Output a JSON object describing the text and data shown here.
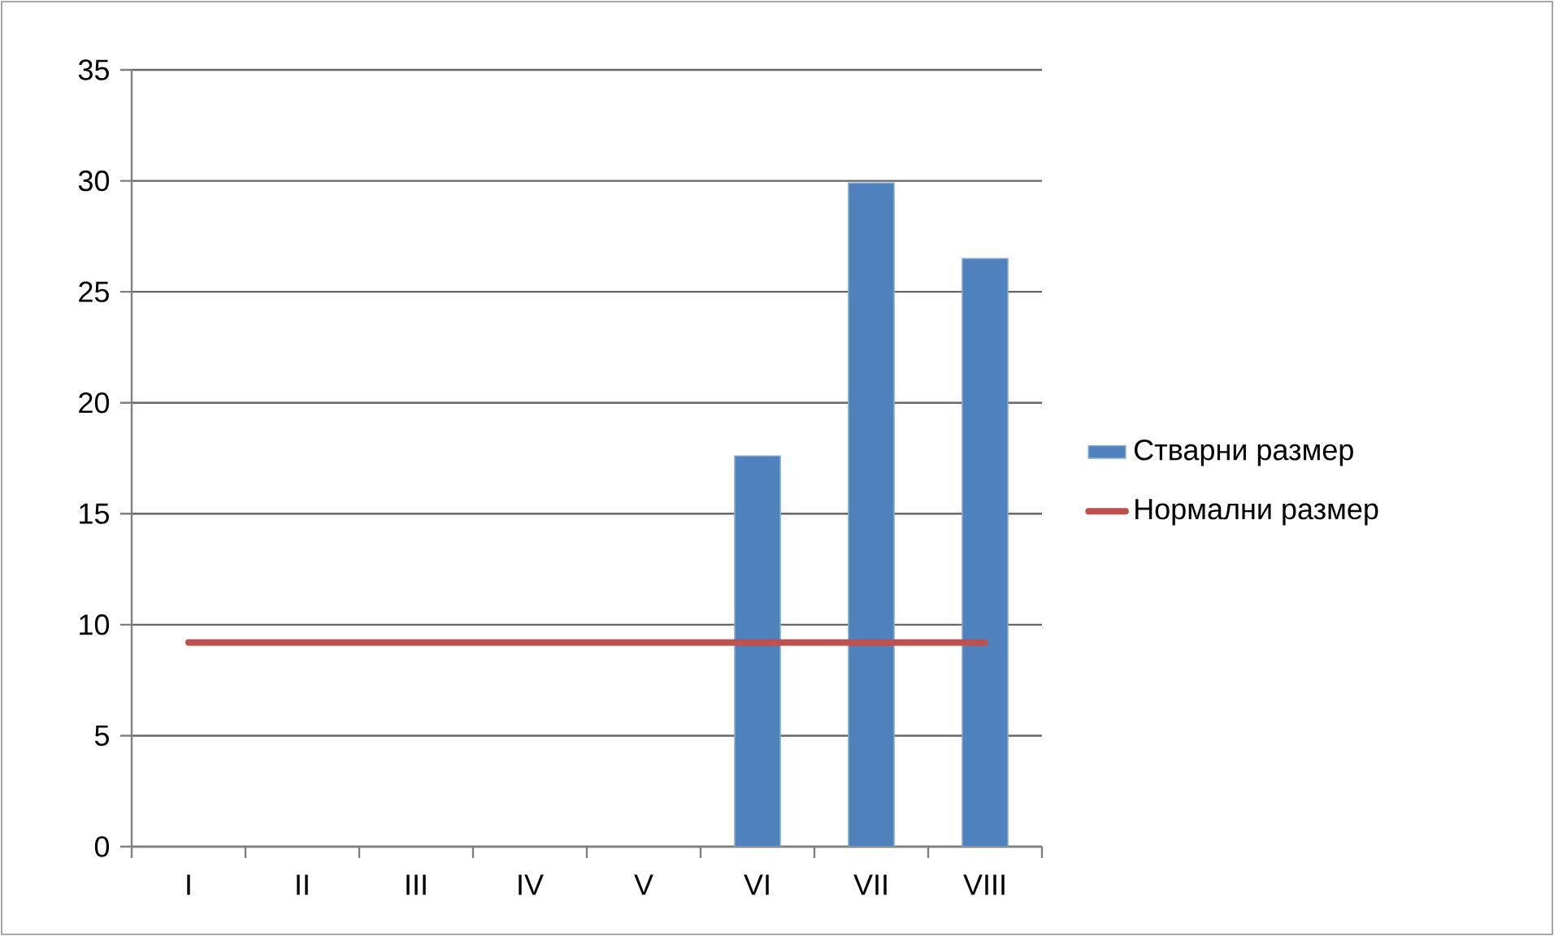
{
  "chart_data": {
    "type": "bar",
    "categories": [
      "I",
      "II",
      "III",
      "IV",
      "V",
      "VI",
      "VII",
      "VIII"
    ],
    "series": [
      {
        "name": "Стварни размер",
        "type": "bar",
        "color": "#4f81bd",
        "values": [
          null,
          null,
          null,
          null,
          null,
          17.6,
          29.9,
          26.5
        ]
      },
      {
        "name": "Нормални размер",
        "type": "line",
        "color": "#c0504d",
        "values": [
          9.2,
          9.2,
          9.2,
          9.2,
          9.2,
          9.2,
          9.2,
          9.2
        ]
      }
    ],
    "ylim": [
      0,
      35
    ],
    "yticks": [
      0,
      5,
      10,
      15,
      20,
      25,
      30,
      35
    ],
    "grid": "y",
    "legend": "right",
    "marker": "none",
    "line_style": "solid"
  }
}
